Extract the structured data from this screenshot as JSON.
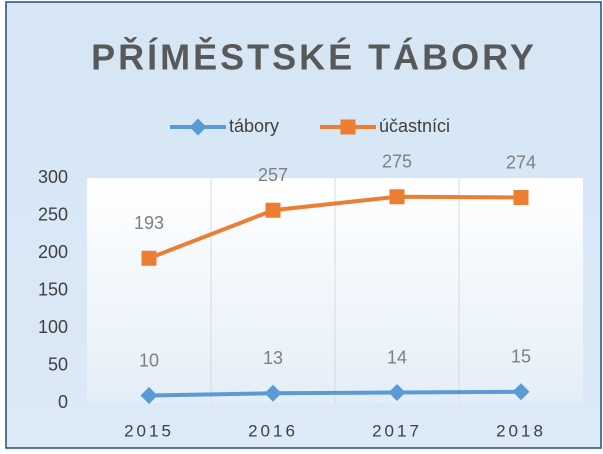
{
  "chart_data": {
    "type": "line",
    "title": "PŘÍMĚSTSKÉ TÁBORY",
    "categories": [
      "2015",
      "2016",
      "2017",
      "2018"
    ],
    "series": [
      {
        "name": "tábory",
        "color": "#5b9bd5",
        "values": [
          10,
          13,
          14,
          15
        ]
      },
      {
        "name": "účastníci",
        "color": "#ed7d31",
        "values": [
          193,
          257,
          275,
          274
        ]
      }
    ],
    "ylim": [
      0,
      300
    ],
    "yticks": [
      0,
      50,
      100,
      150,
      200,
      250,
      300
    ]
  }
}
